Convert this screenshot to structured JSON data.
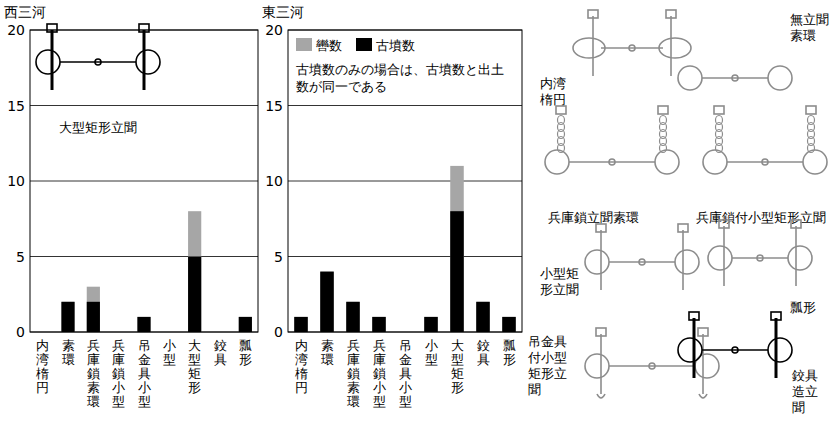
{
  "chart_data": [
    {
      "type": "bar",
      "title": "西三河",
      "categories": [
        "内湾楕円",
        "素環",
        "兵庫鎖素環",
        "兵庫鎖小型",
        "吊金具小型",
        "小型",
        "大型矩形",
        "鉸具",
        "瓢形"
      ],
      "series": [
        {
          "color": "#a6a6a6",
          "values": [
            0,
            2,
            3,
            0,
            1,
            0,
            8,
            0,
            1
          ]
        },
        {
          "color": "#000000",
          "values": [
            0,
            2,
            2,
            0,
            1,
            0,
            5,
            0,
            1
          ]
        }
      ],
      "ylim": [
        0,
        20
      ],
      "yticks": [
        0,
        5,
        10,
        15,
        20
      ],
      "grid": true,
      "stacked": false,
      "annotations": [
        "大型矩形立聞"
      ]
    },
    {
      "type": "bar",
      "title": "東三河",
      "categories": [
        "内湾楕円",
        "素環",
        "兵庫鎖素環",
        "兵庫鎖小型",
        "吊金具小型",
        "小型",
        "大型矩形",
        "鉸具",
        "瓢形"
      ],
      "series": [
        {
          "name": "轡数",
          "color": "#a6a6a6",
          "values": [
            1,
            4,
            2,
            1,
            0,
            1,
            11,
            2,
            1
          ]
        },
        {
          "name": "古墳数",
          "color": "#000000",
          "values": [
            1,
            4,
            2,
            1,
            0,
            1,
            8,
            2,
            1
          ]
        }
      ],
      "ylim": [
        0,
        20
      ],
      "yticks": [
        0,
        5,
        10,
        15,
        20
      ],
      "grid": true,
      "stacked": false,
      "legend": "upper left",
      "annotations": [
        "古墳数のみの場合は、古墳数と出土数が同一である"
      ]
    }
  ],
  "illustrations": {
    "labels": [
      "内湾楕円",
      "無立聞素環",
      "兵庫鎖立聞素環",
      "兵庫鎖付小型矩形立聞",
      "小型矩形立聞",
      "瓢形",
      "吊金具付小型矩形立聞",
      "鉸具造立聞"
    ]
  }
}
